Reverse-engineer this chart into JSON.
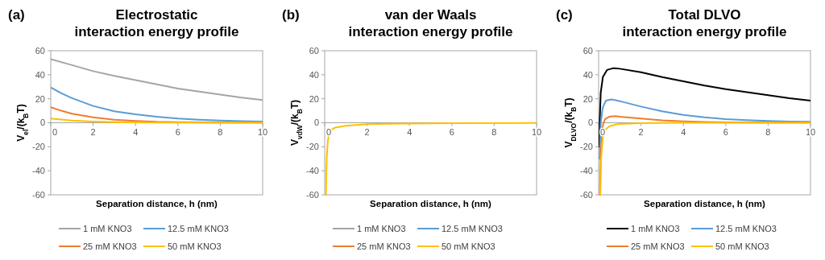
{
  "chart_data": [
    {
      "type": "line",
      "title": "Electrostatic\ninteraction energy profile",
      "annotations": [
        "(a)"
      ],
      "xlabel": "Separation distance, h (nm)",
      "ylabel": "V$_{el}$/(k$_{B}$T)",
      "xlim": [
        0,
        10
      ],
      "xticks": [
        0,
        2,
        4,
        6,
        8,
        10
      ],
      "ylim": [
        -60,
        60
      ],
      "yticks": [
        -60,
        -40,
        -20,
        0,
        20,
        40,
        60
      ],
      "legend": "bottom",
      "series": [
        {
          "name": "1 mM KNO3",
          "color": "#a5a5a5",
          "x": [
            0,
            1,
            2,
            3,
            4,
            5,
            6,
            7,
            8,
            9,
            10
          ],
          "values": [
            53,
            48,
            43,
            39,
            35.5,
            32,
            28.5,
            26,
            23.5,
            21,
            19
          ]
        },
        {
          "name": "12.5 mM KNO3",
          "color": "#5b9bd5",
          "x": [
            0,
            0.5,
            1,
            2,
            3,
            4,
            5,
            6,
            7,
            8,
            9,
            10
          ],
          "values": [
            29.5,
            24.5,
            20.5,
            14,
            9.5,
            7,
            5,
            3.5,
            2.5,
            1.8,
            1.3,
            1
          ]
        },
        {
          "name": "25 mM KNO3",
          "color": "#ed7d31",
          "x": [
            0,
            0.5,
            1,
            2,
            3,
            4,
            5,
            6,
            8,
            10
          ],
          "values": [
            13,
            10,
            7.5,
            4.5,
            2.5,
            1.5,
            0.8,
            0.5,
            0.2,
            0.1
          ]
        },
        {
          "name": "50 mM KNO3",
          "color": "#ffc000",
          "x": [
            0,
            1,
            2,
            3,
            4,
            6,
            10
          ],
          "values": [
            3.5,
            1.8,
            1,
            0.5,
            0.2,
            0.1,
            0
          ]
        }
      ]
    },
    {
      "type": "line",
      "title": "van der Waals\ninteraction energy profile",
      "annotations": [
        "(b)"
      ],
      "xlabel": "Separation distance, h (nm)",
      "ylabel": "V$_{vdW}$/(k$_{B}$T)",
      "xlim": [
        0,
        10
      ],
      "xticks": [
        0,
        2,
        4,
        6,
        8,
        10
      ],
      "ylim": [
        -60,
        60
      ],
      "yticks": [
        -60,
        -40,
        -20,
        0,
        20,
        40,
        60
      ],
      "legend": "bottom",
      "series": [
        {
          "name": "1 mM KNO3",
          "color": "#a5a5a5"
        },
        {
          "name": "12.5 mM KNO3",
          "color": "#5b9bd5"
        },
        {
          "name": "25 mM KNO3",
          "color": "#ed7d31"
        },
        {
          "name": "50 mM KNO3",
          "color": "#ffc000",
          "x": [
            0.06,
            0.08,
            0.1,
            0.15,
            0.2,
            0.3,
            0.5,
            1,
            2,
            3,
            4,
            6,
            10
          ],
          "values": [
            -60,
            -40,
            -28,
            -15,
            -10,
            -6,
            -4,
            -2.5,
            -1.2,
            -0.8,
            -0.6,
            -0.4,
            -0.2
          ]
        }
      ]
    },
    {
      "type": "line",
      "title": "Total DLVO\ninteraction energy profile",
      "annotations": [
        "(c)"
      ],
      "xlabel": "Separation distance, h (nm)",
      "ylabel": "V$_{DLVO}$/(k$_{B}$T)",
      "xlim": [
        0,
        10
      ],
      "xticks": [
        0,
        2,
        4,
        6,
        8,
        10
      ],
      "ylim": [
        -60,
        60
      ],
      "yticks": [
        -60,
        -40,
        -20,
        0,
        20,
        40,
        60
      ],
      "legend": "bottom",
      "series": [
        {
          "name": "1 mM KNO3",
          "color": "#000000",
          "x": [
            0.03,
            0.05,
            0.1,
            0.2,
            0.4,
            0.7,
            1,
            2,
            3,
            4,
            5,
            6,
            7,
            8,
            9,
            10
          ],
          "values": [
            -20,
            0,
            25,
            38,
            44,
            45.5,
            45,
            42,
            38,
            34.5,
            31,
            28,
            25.5,
            23,
            20.5,
            18.5
          ]
        },
        {
          "name": "12.5 mM KNO3",
          "color": "#5b9bd5",
          "x": [
            0.05,
            0.1,
            0.2,
            0.35,
            0.6,
            1,
            2,
            3,
            4,
            5,
            6,
            7,
            8,
            9,
            10
          ],
          "values": [
            -30,
            0,
            13,
            18.5,
            19.5,
            18,
            13.5,
            9.5,
            6.5,
            4.5,
            3,
            2.2,
            1.5,
            1,
            0.8
          ]
        },
        {
          "name": "25 mM KNO3",
          "color": "#ed7d31",
          "x": [
            0.06,
            0.1,
            0.2,
            0.3,
            0.5,
            0.8,
            1,
            2,
            3,
            4,
            5,
            6,
            8,
            10
          ],
          "values": [
            -60,
            -25,
            -2,
            3,
            5,
            5.5,
            5,
            3.5,
            2,
            1.2,
            0.7,
            0.4,
            0.2,
            0.1
          ]
        },
        {
          "name": "50 mM KNO3",
          "color": "#ffc000",
          "x": [
            0.08,
            0.12,
            0.2,
            0.3,
            0.5,
            0.8,
            1,
            2,
            4,
            10
          ],
          "values": [
            -60,
            -30,
            -12,
            -6,
            -3,
            -1.5,
            -1,
            -0.3,
            0,
            0
          ]
        }
      ]
    }
  ]
}
